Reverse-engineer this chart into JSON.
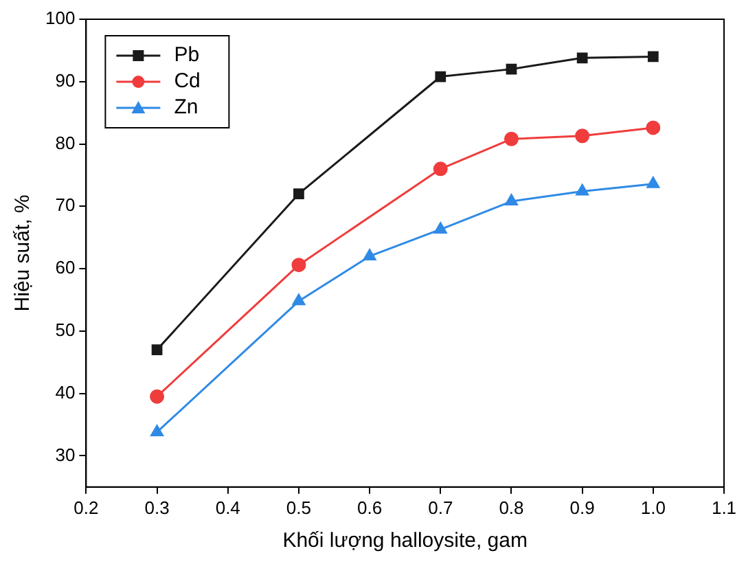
{
  "chart_data": {
    "type": "line",
    "xlabel": "Khối lượng halloysite, gam",
    "ylabel": "Hiệu suất, %",
    "xlim": [
      0.2,
      1.1
    ],
    "xticks": [
      0.2,
      0.3,
      0.4,
      0.5,
      0.6,
      0.7,
      0.8,
      0.9,
      {
        "value": 1,
        "label": "1.0"
      },
      1.1
    ],
    "ylim": [
      25,
      100
    ],
    "yticks": [
      30,
      40,
      50,
      60,
      70,
      80,
      90,
      100
    ],
    "grid": false,
    "legend": "top left",
    "line_style": "solid",
    "series": [
      {
        "name": "Pb",
        "color": "#1a1a1a",
        "marker": "square",
        "x": [
          0.3,
          0.5,
          0.7,
          0.8,
          0.9,
          1.0
        ],
        "values": [
          47,
          72,
          90.8,
          92,
          93.8,
          94
        ]
      },
      {
        "name": "Cd",
        "color": "#f03c3c",
        "marker": "circle",
        "x": [
          0.3,
          0.5,
          0.7,
          0.8,
          0.9,
          1.0
        ],
        "values": [
          39.5,
          60.6,
          76,
          80.8,
          81.3,
          82.6
        ]
      },
      {
        "name": "Zn",
        "color": "#2f8ae6",
        "marker": "triangle",
        "x": [
          0.3,
          0.5,
          0.6,
          0.7,
          0.8,
          0.9,
          1.0
        ],
        "values": [
          33.8,
          54.8,
          62,
          66.3,
          70.8,
          72.4,
          73.6
        ]
      }
    ]
  }
}
